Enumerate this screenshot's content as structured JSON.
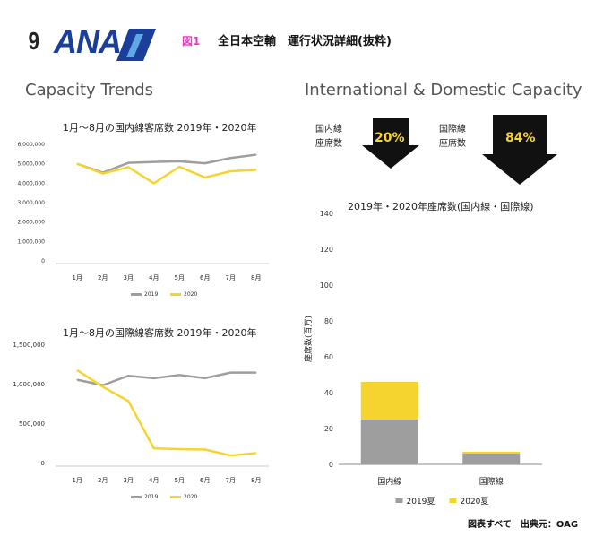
{
  "header": {
    "page_number": "9",
    "logo_text": "ANA",
    "figure_label": "図1",
    "figure_title": "全日本空輸　運行状況詳細(抜粋)"
  },
  "sections": {
    "left_title": "Capacity Trends",
    "right_title": "International & Domestic Capacity"
  },
  "arrows": [
    {
      "label_line1": "国内線",
      "label_line2": "座席数",
      "pct": "20%"
    },
    {
      "label_line1": "国際線",
      "label_line2": "座席数",
      "pct": "84%"
    }
  ],
  "source": "図表すべて　出典元：OAG",
  "colors": {
    "y2019": "#9e9e9e",
    "y2020": "#f5d430",
    "arrow": "#111111",
    "ana_blue": "#1a3e9a"
  },
  "chart_data": [
    {
      "type": "line",
      "title": "1月～8月の国内線客席数 2019年・2020年",
      "categories": [
        "1月",
        "2月",
        "3月",
        "4月",
        "5月",
        "6月",
        "7月",
        "8月"
      ],
      "series": [
        {
          "name": "2019",
          "values": [
            4950000,
            4500000,
            5000000,
            5050000,
            5080000,
            4980000,
            5250000,
            5420000
          ]
        },
        {
          "name": "2020",
          "values": [
            4950000,
            4450000,
            4780000,
            3950000,
            4800000,
            4250000,
            4570000,
            4640000
          ]
        }
      ],
      "yticks": [
        0,
        1000000,
        2000000,
        3000000,
        4000000,
        5000000,
        6000000
      ],
      "ytick_labels": [
        "0",
        "1,000,000",
        "2,000,000",
        "3,000,000",
        "4,000,000",
        "5,000,000",
        "6,000,000"
      ],
      "ylim": [
        0,
        6000000
      ],
      "legend": "bottom"
    },
    {
      "type": "line",
      "title": "1月～8月の国際線客席数 2019年・2020年",
      "categories": [
        "1月",
        "2月",
        "3月",
        "4月",
        "5月",
        "6月",
        "7月",
        "8月"
      ],
      "series": [
        {
          "name": "2019",
          "values": [
            1050000,
            980000,
            1100000,
            1070000,
            1110000,
            1070000,
            1140000,
            1140000
          ]
        },
        {
          "name": "2020",
          "values": [
            1170000,
            960000,
            780000,
            180000,
            170000,
            165000,
            90000,
            120000
          ]
        }
      ],
      "yticks": [
        0,
        500000,
        1000000,
        1500000
      ],
      "ytick_labels": [
        "0",
        "500,000",
        "1,000,000",
        "1,500,000"
      ],
      "ylim": [
        0,
        1500000
      ],
      "legend": "bottom"
    },
    {
      "type": "bar",
      "stacked": true,
      "title": "2019年・2020年座席数(国内線・国際線)",
      "categories": [
        "国内線",
        "国際線"
      ],
      "series": [
        {
          "name": "2019夏",
          "values": [
            25,
            6
          ]
        },
        {
          "name": "2020夏",
          "values": [
            21,
            1
          ]
        }
      ],
      "ylabel": "座席数(百万)",
      "yticks": [
        0,
        20,
        40,
        60,
        80,
        100,
        120,
        140
      ],
      "ylim": [
        0,
        140
      ],
      "legend": "bottom"
    }
  ]
}
